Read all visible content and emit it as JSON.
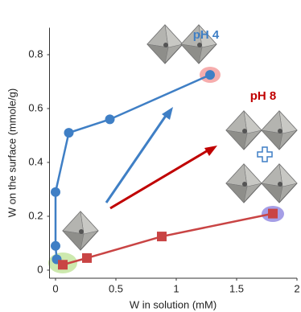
{
  "chart_data": {
    "type": "line",
    "xlabel": "W in solution (mM)",
    "ylabel": "W on the surface (mmole/g)",
    "xlim": [
      -0.05,
      2.0
    ],
    "ylim": [
      -0.03,
      0.9
    ],
    "xticks": [
      0,
      0.5,
      1,
      1.5,
      2
    ],
    "yticks": [
      0,
      0.2,
      0.4,
      0.6,
      0.8
    ],
    "annotations": [
      "pH 4",
      "pH 8"
    ],
    "series": [
      {
        "name": "pH 4",
        "color": "#3f7fc5",
        "marker": "circle",
        "x": [
          0.01,
          0.0,
          0.0,
          0.11,
          0.45,
          1.28
        ],
        "values": [
          0.04,
          0.09,
          0.29,
          0.51,
          0.56,
          0.725
        ]
      },
      {
        "name": "pH 8",
        "color": "#c94444",
        "marker": "square",
        "x": [
          0.06,
          0.26,
          0.88,
          1.8
        ],
        "values": [
          0.02,
          0.045,
          0.125,
          0.21
        ]
      }
    ]
  }
}
